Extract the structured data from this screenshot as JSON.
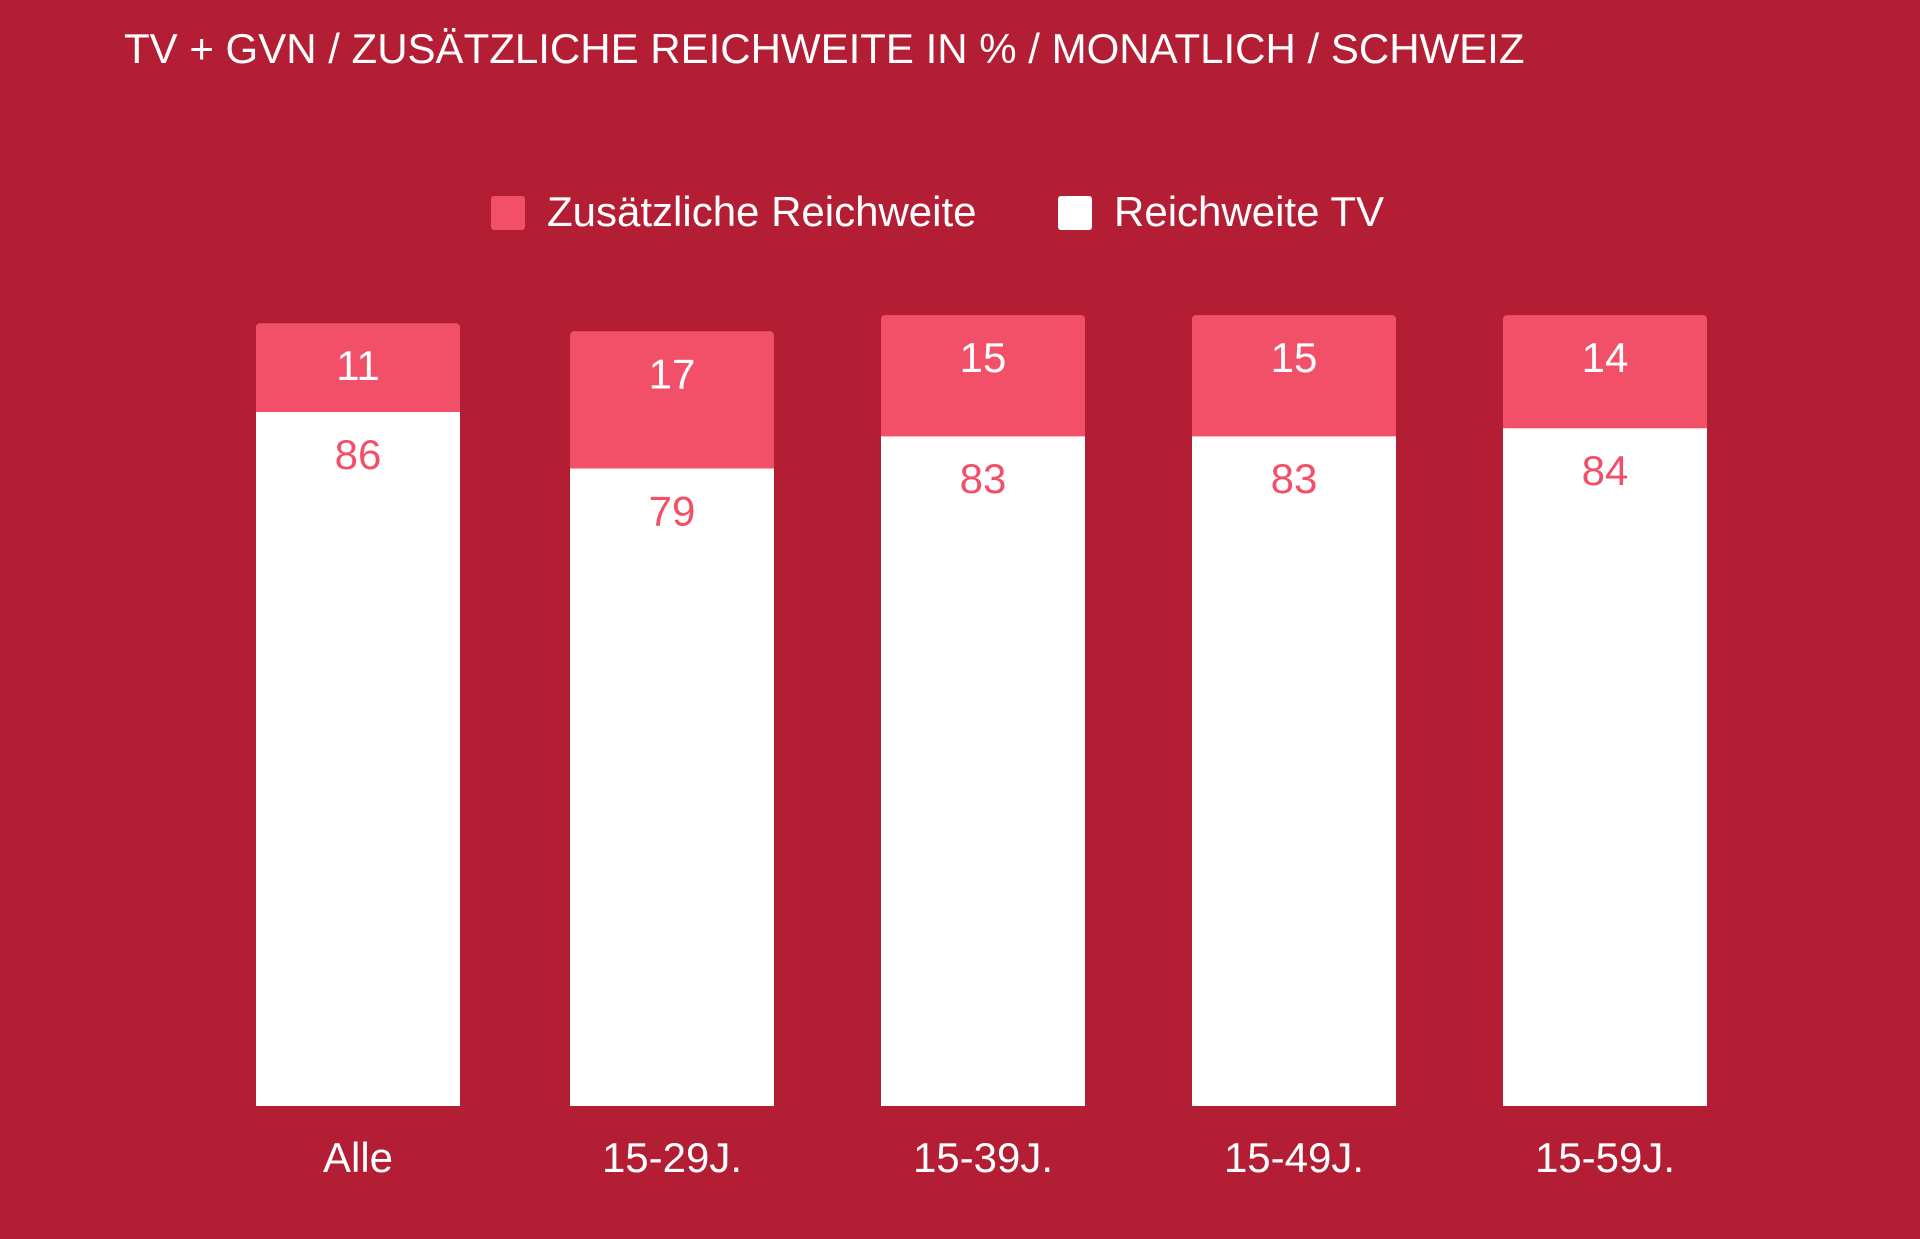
{
  "chart_data": {
    "type": "bar",
    "stacked": true,
    "title": "TV + GVN / ZUSÄTZLICHE REICHWEITE IN % / MONATLICH / SCHWEIZ",
    "xlabel": "",
    "ylabel": "",
    "ylim": [
      0,
      100
    ],
    "grid": false,
    "legend_position": "top-center",
    "categories": [
      "Alle",
      "15-29J.",
      "15-39J.",
      "15-49J.",
      "15-59J."
    ],
    "series": [
      {
        "name": "Reichweite TV",
        "color": "#ffffff",
        "label_color": "#f25068",
        "values": [
          86,
          79,
          83,
          83,
          84
        ]
      },
      {
        "name": "Zusätzliche Reichweite",
        "color": "#f25068",
        "label_color": "#ffffff",
        "values": [
          11,
          17,
          15,
          15,
          14
        ]
      }
    ],
    "legend_order": [
      "Zusätzliche Reichweite",
      "Reichweite TV"
    ]
  },
  "colors": {
    "background": "#b41e34",
    "text": "#ffffff",
    "accent": "#f25068"
  }
}
